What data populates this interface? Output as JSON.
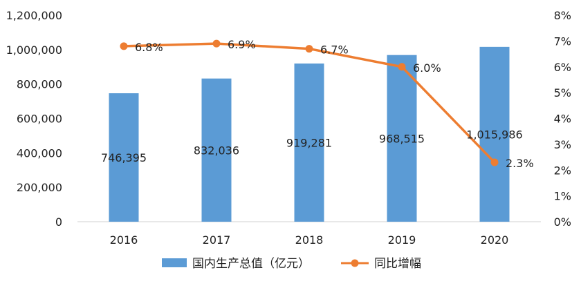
{
  "chart_data": {
    "type": "bar+line",
    "categories": [
      "2016",
      "2017",
      "2018",
      "2019",
      "2020"
    ],
    "series": [
      {
        "name": "国内生产总值（亿元）",
        "type": "bar",
        "axis": "left",
        "values": [
          746395,
          832036,
          919281,
          968515,
          1015986
        ],
        "labels": [
          "746,395",
          "832,036",
          "919,281",
          "968,515",
          "1,015,986"
        ],
        "color": "#5b9bd5"
      },
      {
        "name": "同比增幅",
        "type": "line",
        "axis": "right",
        "values": [
          6.8,
          6.9,
          6.7,
          6.0,
          2.3
        ],
        "labels": [
          "6.8%",
          "6.9%",
          "6.7%",
          "6.0%",
          "2.3%"
        ],
        "color": "#ed7d31"
      }
    ],
    "y_left": {
      "ylim": [
        0,
        1200000
      ],
      "ticks": [
        "0",
        "200,000",
        "400,000",
        "600,000",
        "800,000",
        "1,000,000",
        "1,200,000"
      ]
    },
    "y_right": {
      "ylim": [
        0,
        8
      ],
      "ticks": [
        "0%",
        "1%",
        "2%",
        "3%",
        "4%",
        "5%",
        "6%",
        "7%",
        "8%"
      ]
    },
    "grid": false,
    "legend_position": "bottom",
    "title": "",
    "xlabel": "",
    "ylabel": ""
  }
}
